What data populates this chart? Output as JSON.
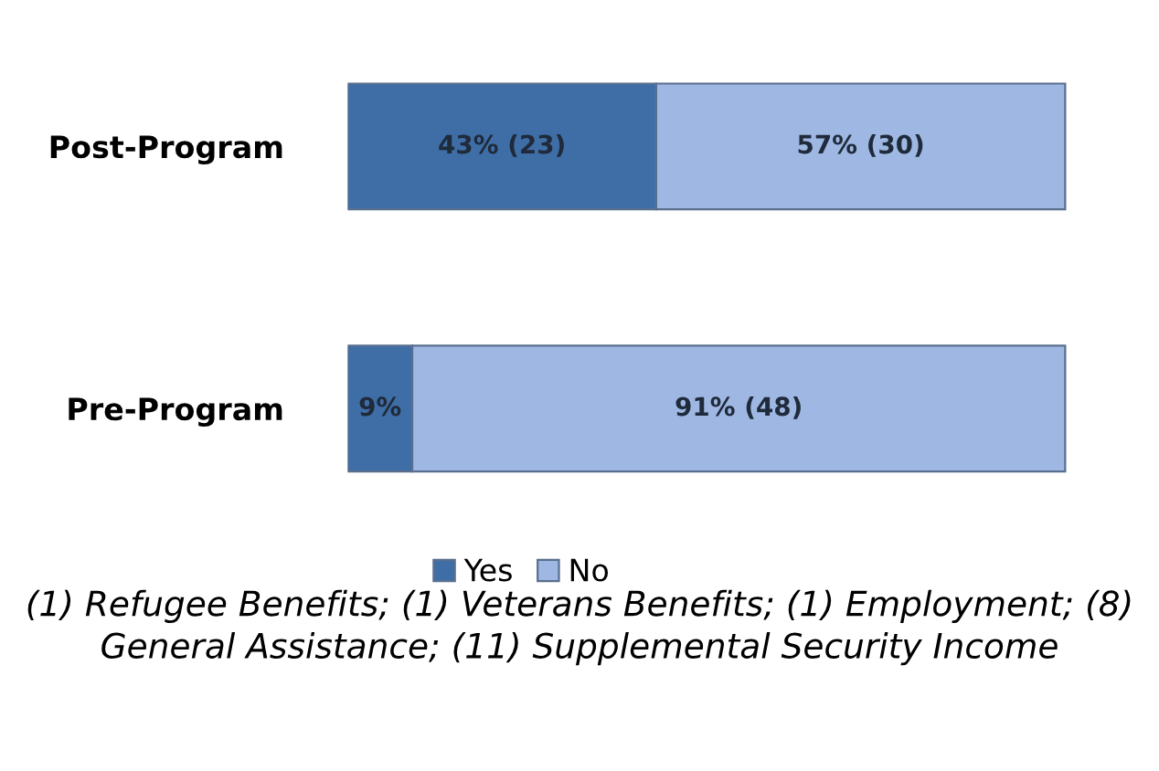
{
  "chart_data": {
    "type": "bar",
    "orientation": "horizontal",
    "stacked": true,
    "categories": [
      "Post-Program",
      "Pre-Program"
    ],
    "series": [
      {
        "name": "Yes",
        "color": "#3f6ea6",
        "values": [
          43,
          9
        ],
        "value_labels": [
          "43% (23)",
          "9%"
        ]
      },
      {
        "name": "No",
        "color": "#9fb8e3",
        "values": [
          57,
          91
        ],
        "value_labels": [
          "57% (30)",
          "91% (48)"
        ]
      }
    ],
    "legend": "bottom",
    "grid": false,
    "annotations": [
      "(1) Refugee Benefits; (1) Veterans Benefits; (1) Employment; (8) General Assistance; (11) Supplemental Security Income"
    ]
  }
}
